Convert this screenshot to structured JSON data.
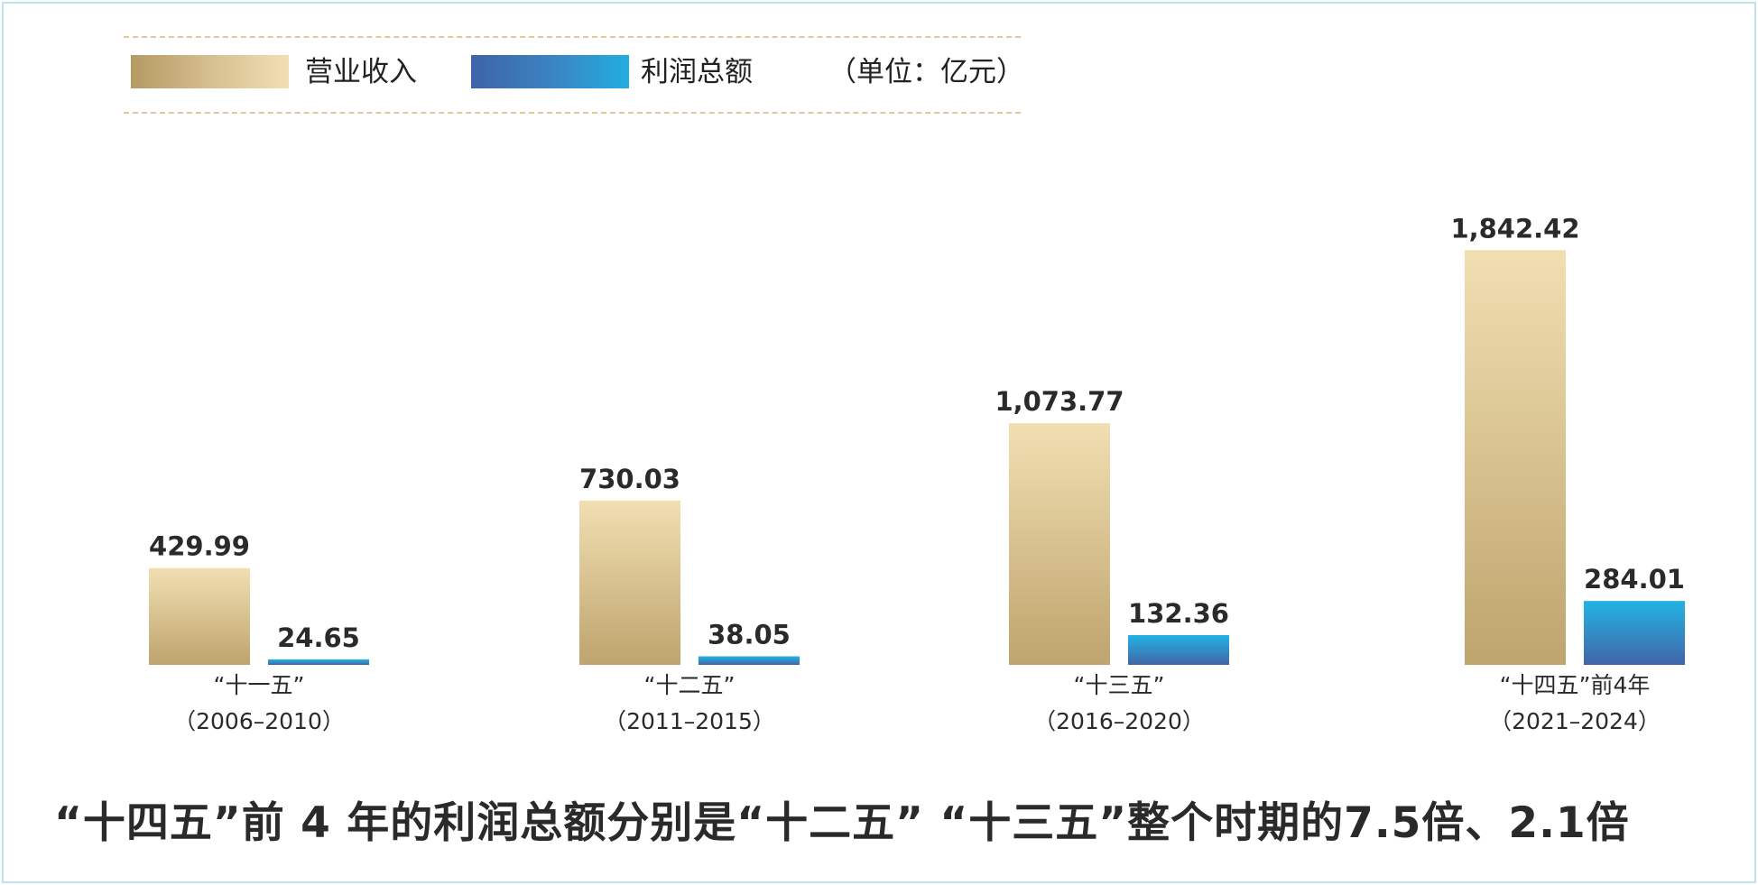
{
  "legend": {
    "revenue_label": "营业收入",
    "profit_label": "利润总额",
    "unit_label": "（单位：亿元）"
  },
  "colors": {
    "revenue_top": "#f1dfb2",
    "revenue_bottom": "#bea46d",
    "profit_top": "#23b3e3",
    "profit_bottom": "#4165a8"
  },
  "chart_data": {
    "type": "bar",
    "categories": [
      {
        "name": "“十一五”",
        "years": "（2006–2010）"
      },
      {
        "name": "“十二五”",
        "years": "（2011–2015）"
      },
      {
        "name": "“十三五”",
        "years": "（2016–2020）"
      },
      {
        "name": "“十四五”前4年",
        "years": "（2021–2024）"
      }
    ],
    "series": [
      {
        "name": "营业收入",
        "values": [
          429.99,
          730.03,
          1073.77,
          1842.42
        ],
        "labels": [
          "429.99",
          "730.03",
          "1,073.77",
          "1,842.42"
        ]
      },
      {
        "name": "利润总额",
        "values": [
          24.65,
          38.05,
          132.36,
          284.01
        ],
        "labels": [
          "24.65",
          "38.05",
          "132.36",
          "284.01"
        ]
      }
    ],
    "unit": "亿元",
    "legend_position": "top-left",
    "grid": false
  },
  "headline": "“十四五”前 4 年的利润总额分别是“十二五” “十三五”整个时期的7.5倍、2.1倍"
}
